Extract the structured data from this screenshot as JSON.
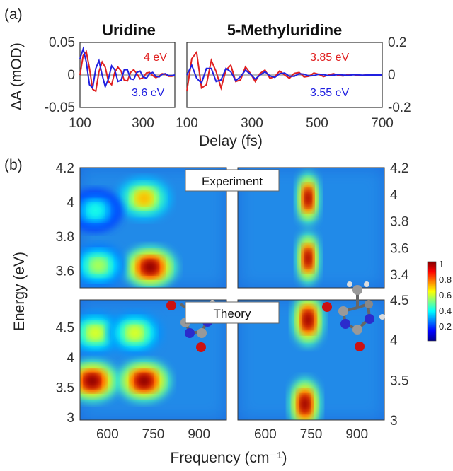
{
  "panel_labels": {
    "a": "(a)",
    "b": "(b)"
  },
  "chart_data": [
    {
      "type": "line",
      "title": "Uridine",
      "ylabel": "ΔA (mOD)",
      "xlim": [
        100,
        400
      ],
      "ylim": [
        -0.05,
        0.05
      ],
      "yticks": [
        "0.05",
        "0",
        "-0.05"
      ],
      "xticks": [
        "100",
        "300"
      ],
      "series": [
        {
          "name": "4 eV",
          "color": "#e02020",
          "x": [
            100,
            110,
            120,
            130,
            140,
            150,
            160,
            170,
            180,
            190,
            200,
            210,
            220,
            230,
            240,
            250,
            260,
            270,
            280,
            290,
            300,
            310,
            320,
            330,
            340,
            350,
            360,
            370,
            380,
            390,
            400
          ],
          "values": [
            0.0,
            0.03,
            0.036,
            0.01,
            -0.022,
            -0.025,
            0.005,
            0.02,
            0.012,
            -0.01,
            -0.015,
            0.004,
            0.012,
            0.006,
            -0.008,
            -0.009,
            0.004,
            0.008,
            0.002,
            -0.006,
            -0.004,
            0.003,
            0.004,
            -0.001,
            -0.004,
            -0.002,
            0.002,
            0.001,
            -0.002,
            -0.002,
            -0.001
          ]
        },
        {
          "name": "3.6 eV",
          "color": "#2020e0",
          "x": [
            100,
            110,
            120,
            130,
            140,
            150,
            160,
            170,
            180,
            190,
            200,
            210,
            220,
            230,
            240,
            250,
            260,
            270,
            280,
            290,
            300,
            310,
            320,
            330,
            340,
            350,
            360,
            370,
            380,
            390,
            400
          ],
          "values": [
            0.025,
            0.04,
            0.02,
            -0.015,
            -0.02,
            0.01,
            0.022,
            0.0,
            -0.018,
            -0.006,
            0.014,
            0.008,
            -0.01,
            -0.008,
            0.008,
            0.008,
            -0.006,
            -0.007,
            0.004,
            0.006,
            -0.003,
            -0.005,
            0.002,
            0.004,
            -0.002,
            -0.003,
            0.001,
            0.002,
            -0.001,
            -0.001,
            0.0
          ]
        }
      ]
    },
    {
      "type": "line",
      "title": "5-Methyluridine",
      "xlabel": "Delay (fs)",
      "xlim": [
        100,
        700
      ],
      "ylim": [
        -0.2,
        0.2
      ],
      "yticks": [
        "0.2",
        "0",
        "-0.2"
      ],
      "xticks": [
        "100",
        "300",
        "500",
        "700"
      ],
      "series": [
        {
          "name": "3.85 eV",
          "color": "#e02020",
          "x": [
            100,
            115,
            130,
            145,
            160,
            175,
            190,
            205,
            220,
            235,
            250,
            265,
            280,
            295,
            310,
            325,
            340,
            355,
            370,
            385,
            400,
            415,
            430,
            445,
            460,
            475,
            490,
            505,
            520,
            535,
            550,
            565,
            580,
            595,
            610,
            625,
            640,
            655,
            670,
            685,
            700
          ],
          "values": [
            -0.1,
            0.1,
            0.14,
            -0.08,
            -0.06,
            0.09,
            0.02,
            -0.08,
            0.03,
            0.06,
            -0.04,
            -0.03,
            0.05,
            0.01,
            -0.04,
            0.01,
            0.03,
            -0.02,
            -0.01,
            0.025,
            0.0,
            -0.02,
            0.01,
            0.015,
            -0.012,
            -0.008,
            0.012,
            0.004,
            -0.01,
            0.0,
            0.008,
            -0.002,
            -0.006,
            0.003,
            0.004,
            -0.003,
            -0.002,
            0.002,
            0.001,
            -0.001,
            0.0
          ]
        },
        {
          "name": "3.55 eV",
          "color": "#2020e0",
          "x": [
            100,
            115,
            130,
            145,
            160,
            175,
            190,
            205,
            220,
            235,
            250,
            265,
            280,
            295,
            310,
            325,
            340,
            355,
            370,
            385,
            400,
            415,
            430,
            445,
            460,
            475,
            490,
            505,
            520,
            535,
            550,
            565,
            580,
            595,
            610,
            625,
            640,
            655,
            670,
            685,
            700
          ],
          "values": [
            0.0,
            0.06,
            -0.02,
            -0.05,
            0.04,
            0.04,
            -0.04,
            -0.03,
            0.04,
            0.02,
            -0.035,
            -0.01,
            0.03,
            0.005,
            -0.025,
            0.0,
            0.02,
            -0.005,
            -0.015,
            0.008,
            0.012,
            -0.008,
            -0.008,
            0.008,
            0.005,
            -0.006,
            -0.004,
            0.005,
            0.002,
            -0.004,
            -0.001,
            0.003,
            0.0,
            -0.002,
            0.001,
            0.001,
            -0.001,
            0.0,
            0.0,
            0.0,
            0.0
          ]
        }
      ]
    },
    {
      "type": "heatmap",
      "group": "Experiment",
      "ylabel": "Energy (eV)",
      "xlim": [
        510,
        990
      ],
      "ylim": [
        3.5,
        4.2
      ],
      "yticks": [
        "4.2",
        "4",
        "3.8",
        "3.6"
      ],
      "peaks": [
        {
          "freq": 740,
          "energy": 3.62,
          "amp": 1.0
        },
        {
          "freq": 720,
          "energy": 4.02,
          "amp": 0.7
        },
        {
          "freq": 570,
          "energy": 3.63,
          "amp": 0.55
        },
        {
          "freq": 560,
          "energy": 3.95,
          "amp": 0.4
        }
      ]
    },
    {
      "type": "heatmap",
      "group": "Experiment",
      "xlim": [
        510,
        990
      ],
      "ylim": [
        3.3,
        4.2
      ],
      "yticks": [
        "4.2",
        "4",
        "3.8",
        "3.6",
        "3.4"
      ],
      "peaks": [
        {
          "freq": 740,
          "energy": 3.97,
          "amp": 1.0
        },
        {
          "freq": 740,
          "energy": 3.52,
          "amp": 1.0
        }
      ]
    },
    {
      "type": "heatmap",
      "group": "Theory",
      "xlabel": "Frequency (cm⁻¹)",
      "xlim": [
        510,
        990
      ],
      "ylim": [
        2.95,
        4.95
      ],
      "yticks": [
        "4.5",
        "4",
        "3.5",
        "3"
      ],
      "xticks": [
        "600",
        "750",
        "900"
      ],
      "peaks": [
        {
          "freq": 550,
          "energy": 3.6,
          "amp": 1.0
        },
        {
          "freq": 720,
          "energy": 3.6,
          "amp": 1.0
        },
        {
          "freq": 560,
          "energy": 4.4,
          "amp": 0.6
        },
        {
          "freq": 690,
          "energy": 4.4,
          "amp": 0.6
        }
      ]
    },
    {
      "type": "heatmap",
      "group": "Theory",
      "xlim": [
        510,
        990
      ],
      "ylim": [
        3.0,
        4.5
      ],
      "yticks": [
        "4.5",
        "4",
        "3.5",
        "3"
      ],
      "xticks": [
        "600",
        "750",
        "900"
      ],
      "peaks": [
        {
          "freq": 740,
          "energy": 4.25,
          "amp": 1.0
        },
        {
          "freq": 730,
          "energy": 3.2,
          "amp": 1.0
        }
      ]
    }
  ],
  "colorbar": {
    "ticks": [
      "1",
      "0.8",
      "0.6",
      "0.4",
      "0.2"
    ]
  },
  "boxes": {
    "experiment": "Experiment",
    "theory": "Theory"
  }
}
